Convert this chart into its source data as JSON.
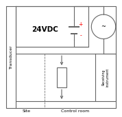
{
  "line_color": "#666666",
  "lw": 0.8,
  "transducer_label": "Transducer",
  "site_label": "Site",
  "control_room_label": "Control room",
  "receiving_label": "Receiving\ninstrument",
  "vdc_label": "24VDC",
  "plus_label": "+",
  "minus_label": "-",
  "tilde_label": "~"
}
